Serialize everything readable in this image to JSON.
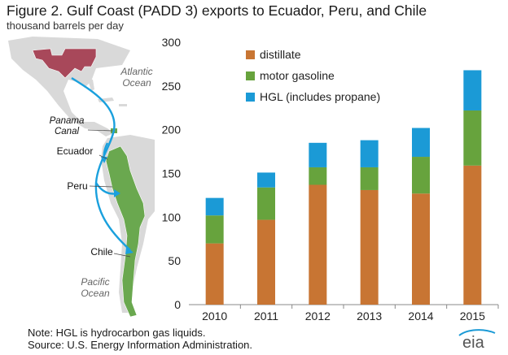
{
  "title": "Figure 2. Gulf Coast (PADD 3) exports to Ecuador, Peru, and Chile",
  "subtitle": "thousand barrels per day",
  "map": {
    "labels": {
      "atlantic": [
        "Atlantic",
        "Ocean"
      ],
      "panama": [
        "Panama",
        "Canal"
      ],
      "ecuador": "Ecuador",
      "peru": "Peru",
      "chile": "Chile",
      "pacific": [
        "Pacific",
        "Ocean"
      ]
    },
    "colors": {
      "land": "#d9d9d9",
      "padd3": "#a8485a",
      "destination": "#6aa84f",
      "route": "#1aa0dd"
    }
  },
  "chart_data": {
    "type": "bar",
    "stacked": true,
    "categories": [
      "2010",
      "2011",
      "2012",
      "2013",
      "2014",
      "2015"
    ],
    "series": [
      {
        "name": "distillate",
        "color": "#c87533",
        "values": [
          70,
          97,
          137,
          131,
          127,
          159
        ]
      },
      {
        "name": "motor gasoline",
        "color": "#67a33d",
        "values": [
          32,
          37,
          20,
          26,
          42,
          63
        ]
      },
      {
        "name": "HGL (includes propane)",
        "color": "#1b9ad6",
        "values": [
          20,
          17,
          28,
          31,
          33,
          46
        ]
      }
    ],
    "ylim": [
      0,
      300
    ],
    "yticks": [
      0,
      50,
      100,
      150,
      200,
      250,
      300
    ],
    "grid": false,
    "legend_position": "top-left"
  },
  "footnote": {
    "note": "Note: HGL is hydrocarbon gas liquids.",
    "source": "Source: U.S. Energy Information Administration."
  },
  "logo_text": "eia"
}
